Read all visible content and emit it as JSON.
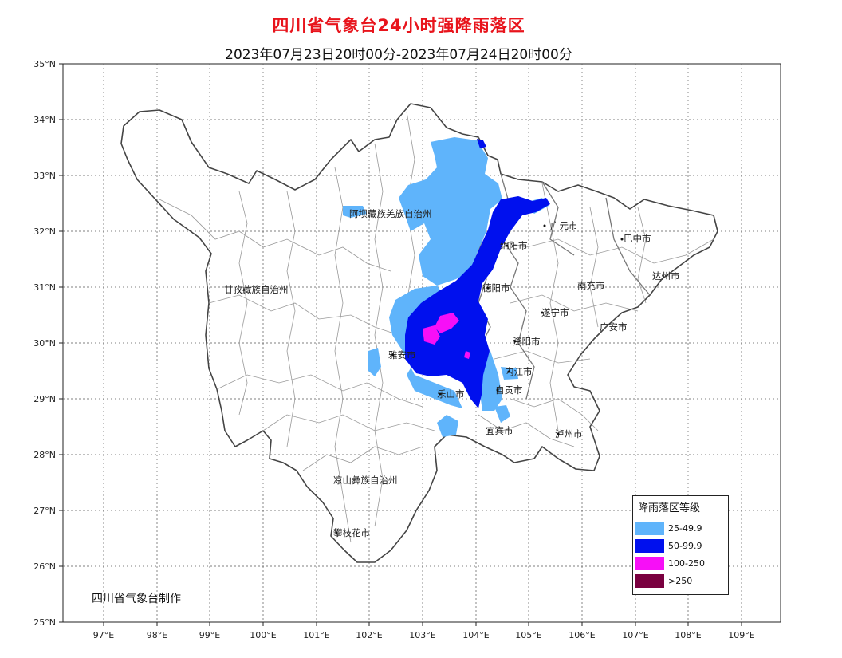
{
  "map": {
    "title": "四川省气象台24小时强降雨落区",
    "subtitle": "2023年07月23日20时00分-2023年07月24日20时00分",
    "credit": "四川省气象台制作",
    "lat_labels": [
      "35°N",
      "34°N",
      "33°N",
      "32°N",
      "31°N",
      "30°N",
      "29°N",
      "28°N",
      "27°N",
      "26°N",
      "25°N"
    ],
    "lon_labels": [
      "97°E",
      "98°E",
      "99°E",
      "100°E",
      "101°E",
      "102°E",
      "103°E",
      "104°E",
      "105°E",
      "106°E",
      "107°E",
      "108°E",
      "109°E"
    ],
    "cities": [
      "阿坝藏族羌族自治州",
      "广元市",
      "巴中市",
      "绵阳市",
      "达州市",
      "甘孜藏族自治州",
      "德阳市",
      "南充市",
      "遂宁市",
      "广安市",
      "雅安市",
      "资阳市",
      "内江市",
      "乐山市",
      "自贡市",
      "宜宾市",
      "泸州市",
      "凉山彝族自治州",
      "攀枝花市"
    ]
  },
  "legend": {
    "title": "降雨落区等级",
    "items": [
      {
        "label": "25-49.9",
        "color": "#5fb4fb"
      },
      {
        "label": "50-99.9",
        "color": "#0010ee"
      },
      {
        "label": "100-250",
        "color": "#f70ff7"
      },
      {
        "label": ">250",
        "color": "#7a0040"
      }
    ]
  }
}
